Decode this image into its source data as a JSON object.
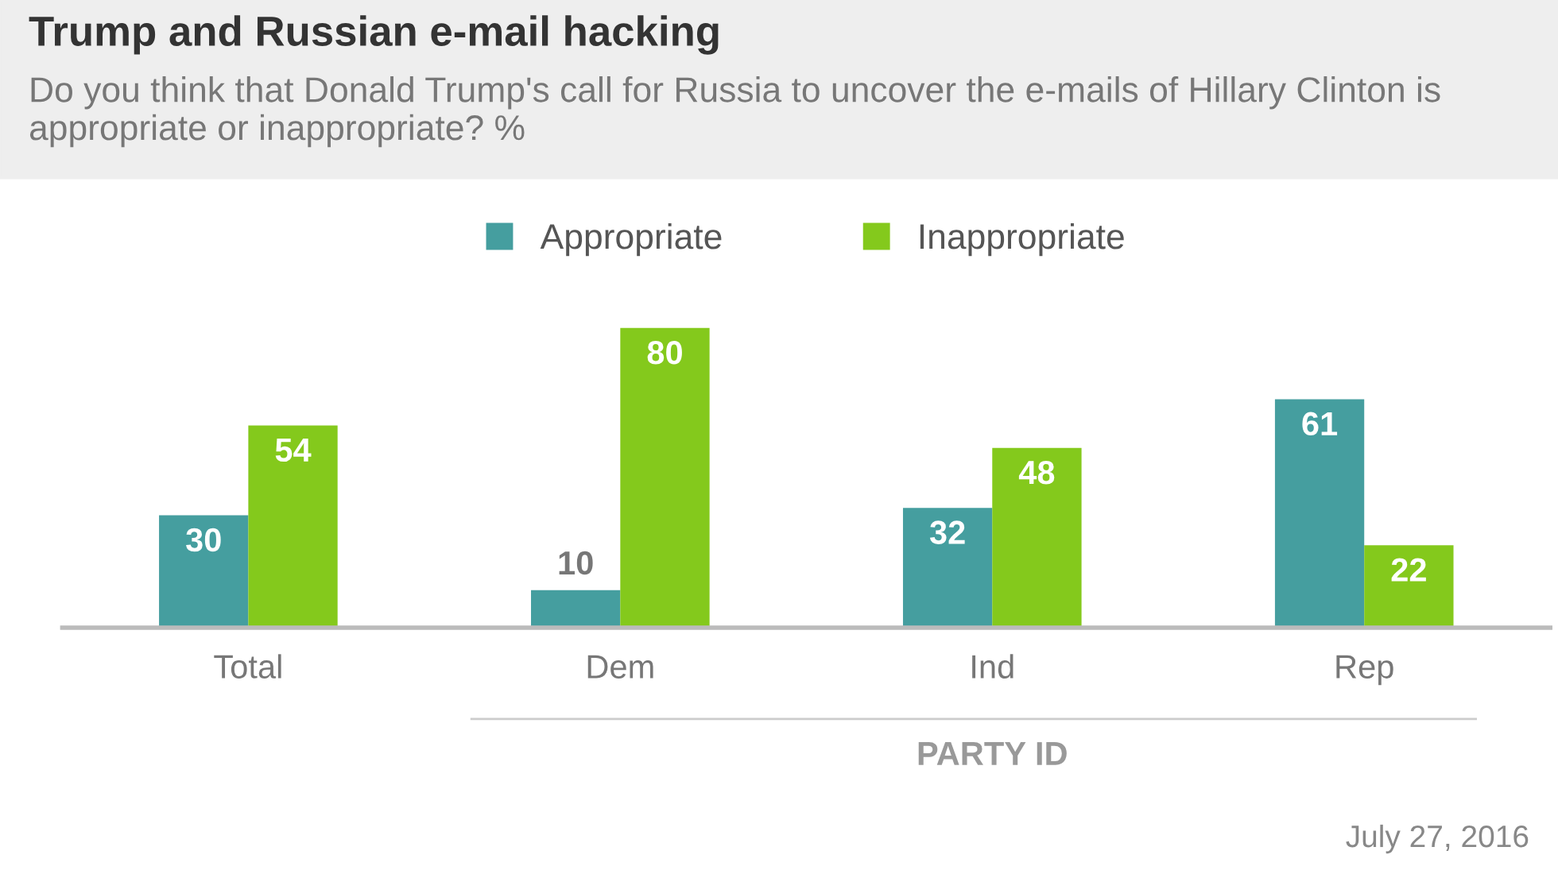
{
  "chart_data": {
    "type": "bar",
    "title": "Trump and Russian e-mail hacking",
    "subtitle": "Do you think that Donald Trump's call for Russia to uncover the e-mails of Hillary Clinton is appropriate or inappropriate? %",
    "categories": [
      "Total",
      "Dem",
      "Ind",
      "Rep"
    ],
    "series": [
      {
        "name": "Appropriate",
        "color": "#459e9f",
        "values": [
          30,
          10,
          32,
          61
        ]
      },
      {
        "name": "Inappropriate",
        "color": "#84c91c",
        "values": [
          54,
          80,
          48,
          22
        ]
      }
    ],
    "data_labels": true,
    "legend": "top",
    "grid": false,
    "annotations": [
      "PARTY ID",
      "July 27, 2016"
    ]
  }
}
